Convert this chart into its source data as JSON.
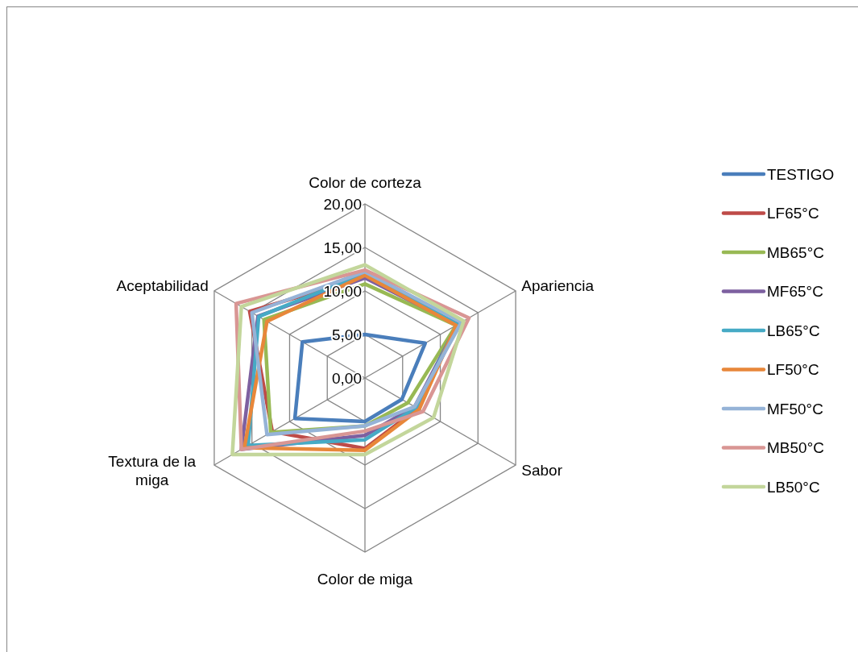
{
  "chart_data": {
    "type": "radar",
    "categories": [
      "Color de corteza",
      "Apariencia",
      "Sabor",
      "Color de miga",
      "Textura de la miga",
      "Aceptabilidad"
    ],
    "ylim": [
      0,
      20
    ],
    "yticks": [
      {
        "value": 0,
        "label": "0,00"
      },
      {
        "value": 5,
        "label": "5,00"
      },
      {
        "value": 10,
        "label": "10,00"
      },
      {
        "value": 15,
        "label": "15,00"
      },
      {
        "value": 20,
        "label": "20,00"
      }
    ],
    "grid": true,
    "legend": "right",
    "marker": "none",
    "line_style": "solid",
    "series": [
      {
        "name": "TESTIGO",
        "color": "#4a7ebb",
        "values": [
          5.0,
          8.0,
          4.9,
          5.0,
          9.3,
          8.3
        ]
      },
      {
        "name": "LF65°C",
        "color": "#be4b48",
        "values": [
          11.6,
          12.3,
          7.0,
          8.1,
          12.3,
          15.3
        ]
      },
      {
        "name": "MB65°C",
        "color": "#98b954",
        "values": [
          10.8,
          12.1,
          5.7,
          5.5,
          12.5,
          13.4
        ]
      },
      {
        "name": "MF65°C",
        "color": "#7d60a0",
        "values": [
          11.5,
          12.3,
          6.6,
          6.6,
          16.4,
          14.2
        ]
      },
      {
        "name": "LB65°C",
        "color": "#46aac5",
        "values": [
          12.0,
          12.3,
          6.8,
          7.1,
          15.5,
          14.1
        ]
      },
      {
        "name": "LF50°C",
        "color": "#e8873a",
        "values": [
          11.8,
          12.1,
          7.2,
          8.3,
          16.0,
          13.0
        ]
      },
      {
        "name": "MF50°C",
        "color": "#95b3d7",
        "values": [
          12.2,
          12.8,
          6.6,
          5.5,
          13.0,
          15.0
        ]
      },
      {
        "name": "MB50°C",
        "color": "#d99694",
        "values": [
          12.4,
          13.8,
          7.7,
          6.1,
          16.4,
          17.1
        ]
      },
      {
        "name": "LB50°C",
        "color": "#c3d69b",
        "values": [
          13.0,
          13.1,
          9.1,
          8.8,
          17.6,
          16.4
        ]
      }
    ]
  }
}
